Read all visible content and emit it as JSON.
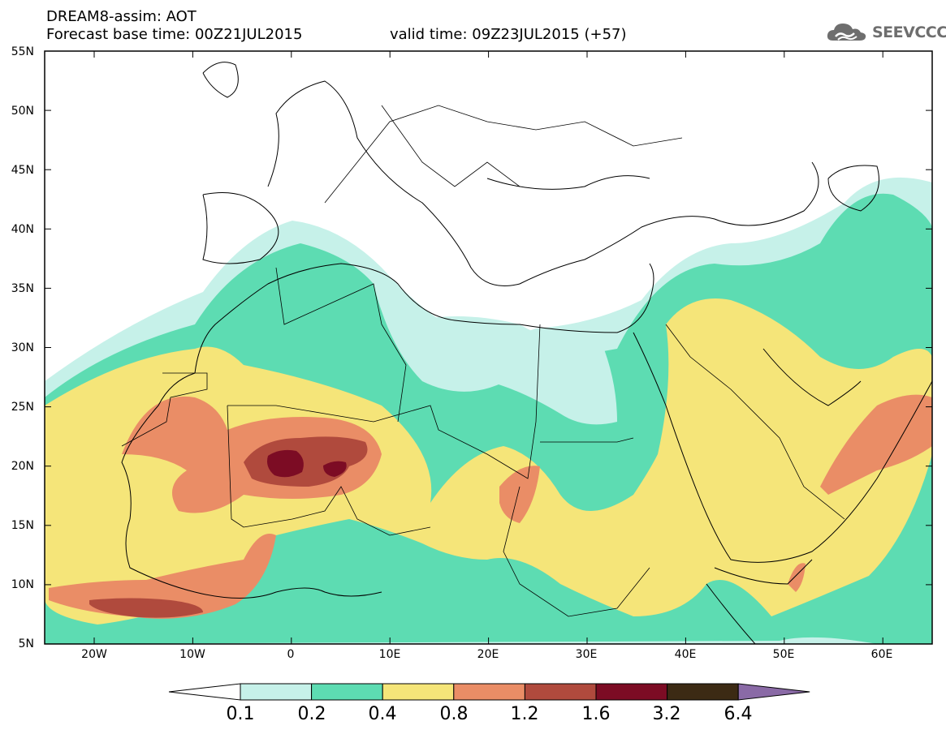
{
  "header": {
    "title": "DREAM8-assim: AOT",
    "base_time": "Forecast base time: 00Z21JUL2015",
    "valid_time": "valid time: 09Z23JUL2015 (+57)"
  },
  "logo": {
    "text": "SEEVCCC",
    "icon": "cloud-icon"
  },
  "axes": {
    "lat_labels": [
      "55N",
      "50N",
      "45N",
      "40N",
      "35N",
      "30N",
      "25N",
      "20N",
      "15N",
      "10N",
      "5N"
    ],
    "lon_labels": [
      "20W",
      "10W",
      "0",
      "10E",
      "20E",
      "30E",
      "40E",
      "50E",
      "60E"
    ]
  },
  "colorbar": {
    "labels": [
      "0.1",
      "0.2",
      "0.4",
      "0.8",
      "1.2",
      "1.6",
      "3.2",
      "6.4"
    ],
    "colors": [
      "#ffffff",
      "#c6f1e9",
      "#5ddcb2",
      "#f5e579",
      "#ea8d66",
      "#b04a3d",
      "#7c0c24",
      "#3c2a14",
      "#8a6aa6"
    ]
  },
  "map_colors": {
    "level_01": "#c6f1e9",
    "level_02": "#5ddcb2",
    "level_04": "#f5e579",
    "level_08": "#ea8d66",
    "level_12": "#b04a3d",
    "level_16": "#7c0c24"
  }
}
